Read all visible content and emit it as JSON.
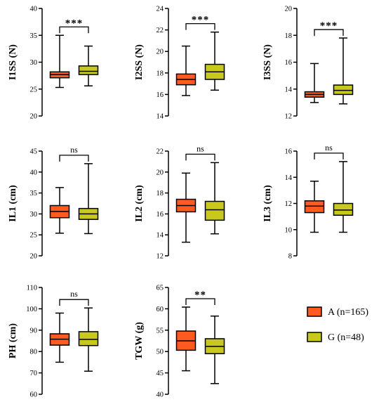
{
  "chart_data": [
    {
      "type": "box",
      "ylabel": "I1SS (N)",
      "ylim": [
        20,
        40
      ],
      "yticks": [
        "20",
        "25",
        "30",
        "35",
        "40"
      ],
      "significance": "***",
      "series": [
        {
          "name": "A (n=165)",
          "min": 25.3,
          "q1": 27.1,
          "median": 27.7,
          "q3": 28.2,
          "max": 35.0
        },
        {
          "name": "G (n=48)",
          "min": 25.6,
          "q1": 27.7,
          "median": 28.3,
          "q3": 29.3,
          "max": 33.0
        }
      ]
    },
    {
      "type": "box",
      "ylabel": "I2SS (N)",
      "ylim": [
        14,
        24
      ],
      "yticks": [
        "14",
        "16",
        "18",
        "20",
        "22",
        "24"
      ],
      "significance": "***",
      "series": [
        {
          "name": "A (n=165)",
          "min": 15.9,
          "q1": 16.9,
          "median": 17.4,
          "q3": 17.9,
          "max": 20.5
        },
        {
          "name": "G (n=48)",
          "min": 16.4,
          "q1": 17.4,
          "median": 18.1,
          "q3": 18.8,
          "max": 21.8
        }
      ]
    },
    {
      "type": "box",
      "ylabel": "I3SS (N)",
      "ylim": [
        12,
        20
      ],
      "yticks": [
        "12",
        "14",
        "16",
        "18",
        "20"
      ],
      "significance": "***",
      "series": [
        {
          "name": "A (n=165)",
          "min": 13.0,
          "q1": 13.4,
          "median": 13.6,
          "q3": 13.8,
          "max": 15.9
        },
        {
          "name": "G (n=48)",
          "min": 12.9,
          "q1": 13.6,
          "median": 13.9,
          "q3": 14.3,
          "max": 17.8
        }
      ]
    },
    {
      "type": "box",
      "ylabel": "IL1 (cm)",
      "ylim": [
        20,
        45
      ],
      "yticks": [
        "20",
        "25",
        "30",
        "35",
        "40",
        "45"
      ],
      "significance": "ns",
      "series": [
        {
          "name": "A (n=165)",
          "min": 25.4,
          "q1": 29.1,
          "median": 30.6,
          "q3": 32.0,
          "max": 36.3
        },
        {
          "name": "G (n=48)",
          "min": 25.3,
          "q1": 28.7,
          "median": 30.0,
          "q3": 31.3,
          "max": 42.0
        }
      ]
    },
    {
      "type": "box",
      "ylabel": "IL2 (cm)",
      "ylim": [
        12,
        22
      ],
      "yticks": [
        "12",
        "14",
        "16",
        "18",
        "20",
        "22"
      ],
      "significance": "ns",
      "series": [
        {
          "name": "A (n=165)",
          "min": 13.3,
          "q1": 16.2,
          "median": 16.8,
          "q3": 17.4,
          "max": 19.9
        },
        {
          "name": "G (n=48)",
          "min": 14.1,
          "q1": 15.4,
          "median": 16.4,
          "q3": 17.2,
          "max": 20.9
        }
      ]
    },
    {
      "type": "box",
      "ylabel": "IL3 (cm)",
      "ylim": [
        8,
        16
      ],
      "yticks": [
        "8",
        "10",
        "12",
        "14",
        "16"
      ],
      "significance": "ns",
      "series": [
        {
          "name": "A (n=165)",
          "min": 9.8,
          "q1": 11.3,
          "median": 11.8,
          "q3": 12.2,
          "max": 13.7
        },
        {
          "name": "G (n=48)",
          "min": 9.8,
          "q1": 11.1,
          "median": 11.5,
          "q3": 12.0,
          "max": 15.2
        }
      ]
    },
    {
      "type": "box",
      "ylabel": "PH (cm)",
      "ylim": [
        60,
        110
      ],
      "yticks": [
        "60",
        "70",
        "80",
        "90",
        "100",
        "110"
      ],
      "significance": "ns",
      "series": [
        {
          "name": "A (n=165)",
          "min": 75.0,
          "q1": 83.0,
          "median": 85.8,
          "q3": 88.3,
          "max": 98.0
        },
        {
          "name": "G (n=48)",
          "min": 70.8,
          "q1": 82.8,
          "median": 85.7,
          "q3": 89.3,
          "max": 100.4
        }
      ]
    },
    {
      "type": "box",
      "ylabel": "TGW (g)",
      "ylim": [
        40,
        65
      ],
      "yticks": [
        "40",
        "45",
        "50",
        "55",
        "60",
        "65"
      ],
      "significance": "**",
      "series": [
        {
          "name": "A (n=165)",
          "min": 45.5,
          "q1": 50.3,
          "median": 52.5,
          "q3": 54.8,
          "max": 60.4
        },
        {
          "name": "G (n=48)",
          "min": 42.5,
          "q1": 49.5,
          "median": 51.2,
          "q3": 53.0,
          "max": 58.3
        }
      ]
    }
  ],
  "legend": {
    "placement": "bottom-right",
    "items": [
      {
        "label": "A (n=165)",
        "color": "#ff5a1f"
      },
      {
        "label": "G (n=48)",
        "color": "#c8c81e"
      }
    ]
  },
  "colors": {
    "A": "#ff5a1f",
    "G": "#c8c81e",
    "axis": "#000000"
  }
}
